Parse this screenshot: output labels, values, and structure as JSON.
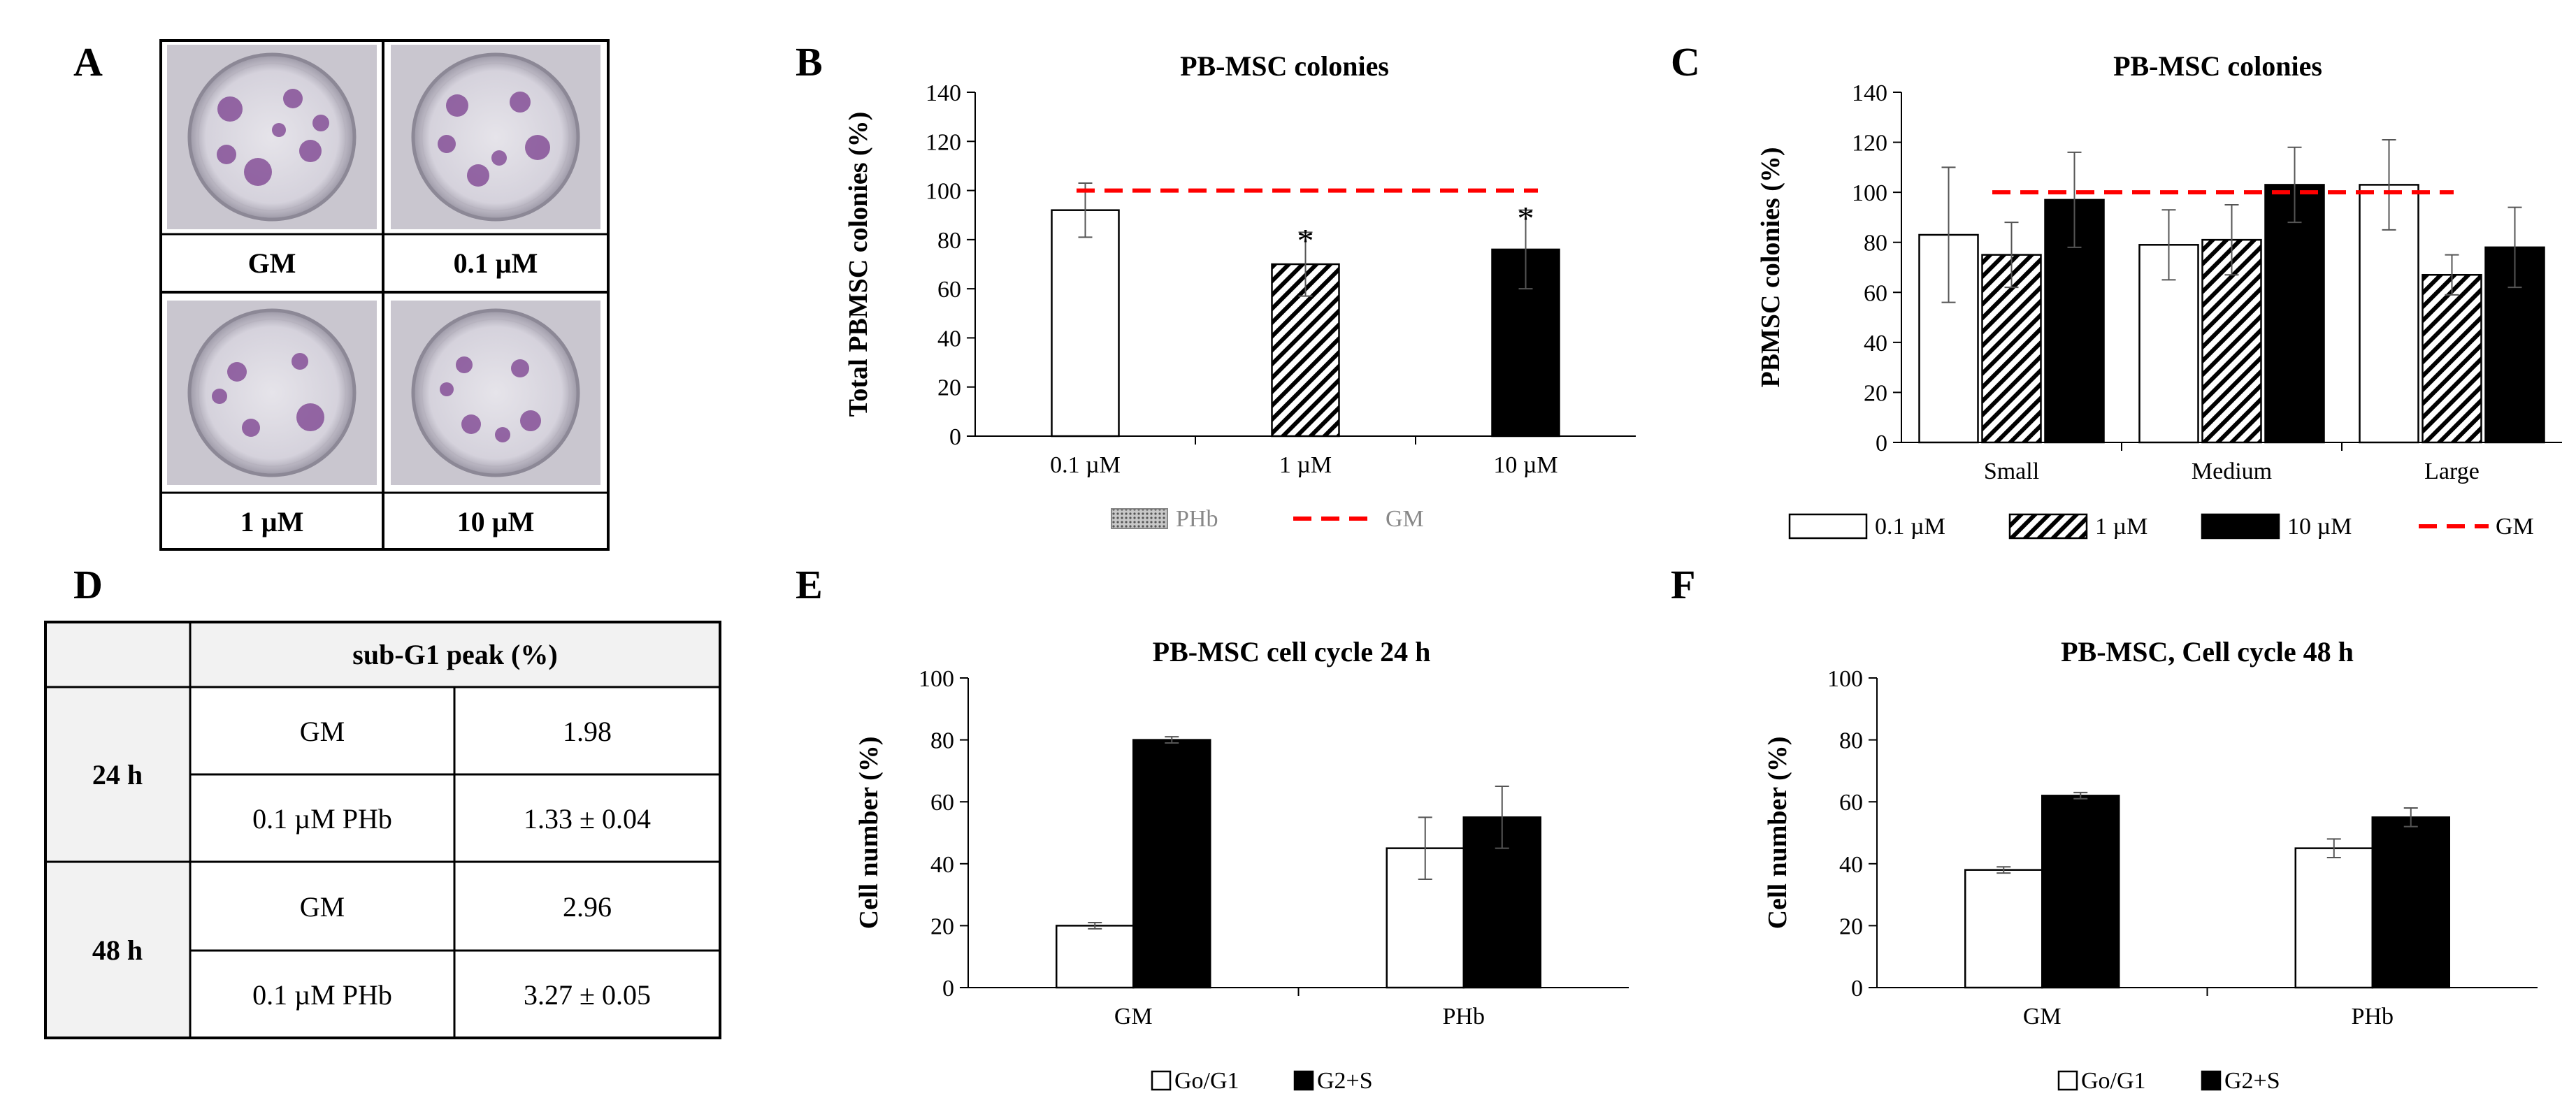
{
  "panel_labels": {
    "A": "A",
    "B": "B",
    "C": "C",
    "D": "D",
    "E": "E",
    "F": "F"
  },
  "colors": {
    "bar_white": "#ffffff",
    "bar_black": "#000000",
    "hatch": "#000000",
    "gm_line": "#ff0000",
    "table_header": "#f2f2f2",
    "dish_purple": "#7a3e8e"
  },
  "panel_a": {
    "labels": [
      "GM",
      "0.1 µM",
      "1 µM",
      "10 µM"
    ]
  },
  "chart_data": [
    {
      "id": "B",
      "type": "bar",
      "title": "PB-MSC colonies",
      "xlabel": "",
      "ylabel": "Total PBMSC colonies (%)",
      "ylim": [
        0,
        140
      ],
      "yticks": [
        0,
        20,
        40,
        60,
        80,
        100,
        120,
        140
      ],
      "categories": [
        "0.1 µM",
        "1 µM",
        "10 µM"
      ],
      "series": [
        {
          "name": "PHb",
          "values": [
            92,
            70,
            76
          ],
          "errors": [
            11,
            13,
            16
          ],
          "fills": [
            "white",
            "hatch",
            "black"
          ]
        }
      ],
      "reference_line": {
        "name": "GM",
        "value": 100
      },
      "annotations": [
        "",
        "*",
        "*"
      ],
      "legend": [
        "PHb",
        "GM"
      ]
    },
    {
      "id": "C",
      "type": "bar",
      "title": "PB-MSC colonies",
      "xlabel": "",
      "ylabel": "PBMSC colonies (%)",
      "ylim": [
        0,
        140
      ],
      "yticks": [
        0,
        20,
        40,
        60,
        80,
        100,
        120,
        140
      ],
      "categories": [
        "Small",
        "Medium",
        "Large"
      ],
      "series": [
        {
          "name": "0.1 µM",
          "fill": "white",
          "values": [
            83,
            79,
            103
          ],
          "errors": [
            27,
            14,
            18
          ]
        },
        {
          "name": "1 µM",
          "fill": "hatch",
          "values": [
            75,
            81,
            67
          ],
          "errors": [
            13,
            14,
            8
          ]
        },
        {
          "name": "10 µM",
          "fill": "black",
          "values": [
            97,
            103,
            78
          ],
          "errors": [
            19,
            15,
            16
          ]
        }
      ],
      "reference_line": {
        "name": "GM",
        "value": 100
      },
      "legend": [
        "0.1 µM",
        "1 µM",
        "10 µM",
        "GM"
      ]
    },
    {
      "id": "E",
      "type": "bar",
      "title": "PB-MSC cell cycle 24 h",
      "xlabel": "",
      "ylabel": "Cell number (%)",
      "ylim": [
        0,
        100
      ],
      "yticks": [
        0,
        20,
        40,
        60,
        80,
        100
      ],
      "categories": [
        "GM",
        "PHb"
      ],
      "series": [
        {
          "name": "Go/G1",
          "fill": "white",
          "values": [
            20,
            45
          ],
          "errors": [
            1,
            10
          ]
        },
        {
          "name": "G2+S",
          "fill": "black",
          "values": [
            80,
            55
          ],
          "errors": [
            1,
            10
          ]
        }
      ],
      "legend": [
        "Go/G1",
        "G2+S"
      ]
    },
    {
      "id": "F",
      "type": "bar",
      "title": "PB-MSC, Cell cycle 48 h",
      "xlabel": "",
      "ylabel": "Cell number (%)",
      "ylim": [
        0,
        100
      ],
      "yticks": [
        0,
        20,
        40,
        60,
        80,
        100
      ],
      "categories": [
        "GM",
        "PHb"
      ],
      "series": [
        {
          "name": "Go/G1",
          "fill": "white",
          "values": [
            38,
            45
          ],
          "errors": [
            1,
            3
          ]
        },
        {
          "name": "G2+S",
          "fill": "black",
          "values": [
            62,
            55
          ],
          "errors": [
            1,
            3
          ]
        }
      ],
      "legend": [
        "Go/G1",
        "G2+S"
      ]
    },
    {
      "id": "D",
      "type": "table",
      "header": "sub-G1 peak (%)",
      "rows": [
        {
          "time": "24 h",
          "entries": [
            [
              "GM",
              "1.98"
            ],
            [
              "0.1 µM PHb",
              "1.33 ± 0.04"
            ]
          ]
        },
        {
          "time": "48 h",
          "entries": [
            [
              "GM",
              "2.96"
            ],
            [
              "0.1 µM PHb",
              "3.27 ± 0.05"
            ]
          ]
        }
      ]
    }
  ]
}
